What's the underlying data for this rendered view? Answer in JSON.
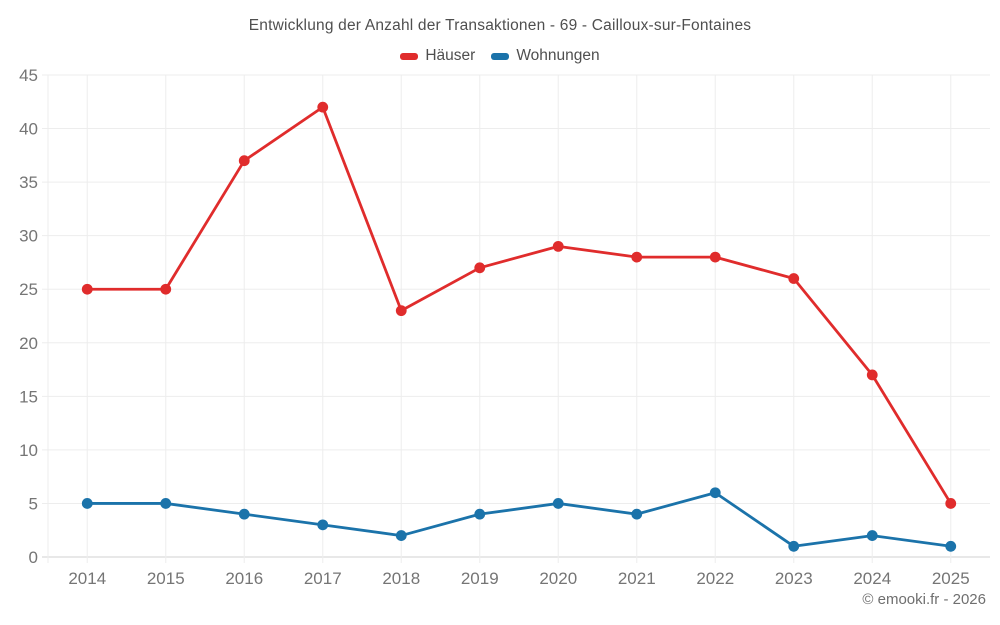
{
  "chart_data": {
    "type": "line",
    "title": "Entwicklung der Anzahl der Transaktionen - 69 - Cailloux-sur-Fontaines",
    "categories": [
      "2014",
      "2015",
      "2016",
      "2017",
      "2018",
      "2019",
      "2020",
      "2021",
      "2022",
      "2023",
      "2024",
      "2025"
    ],
    "series": [
      {
        "name": "Häuser",
        "color": "#e02c2c",
        "values": [
          25,
          25,
          37,
          42,
          23,
          27,
          29,
          28,
          28,
          26,
          17,
          5
        ]
      },
      {
        "name": "Wohnungen",
        "color": "#1b73aa",
        "values": [
          5,
          5,
          4,
          3,
          2,
          4,
          5,
          4,
          6,
          1,
          2,
          1
        ]
      }
    ],
    "xlabel": "",
    "ylabel": "",
    "ylim": [
      0,
      45
    ],
    "yticks": [
      0,
      5,
      10,
      15,
      20,
      25,
      30,
      35,
      40,
      45
    ],
    "grid": true,
    "legend_position": "top"
  },
  "footer": {
    "credit": "© emooki.fr - 2026"
  },
  "colors": {
    "haeuser_red": "#e02c2c",
    "wohnungen_blue": "#1b73aa",
    "grid_line": "#ededed",
    "axis_line": "#d2d2d2",
    "tick_text": "#757575",
    "title_text": "#4f4f4f",
    "credit_text": "#6f6f6f",
    "background": "#ffffff"
  }
}
